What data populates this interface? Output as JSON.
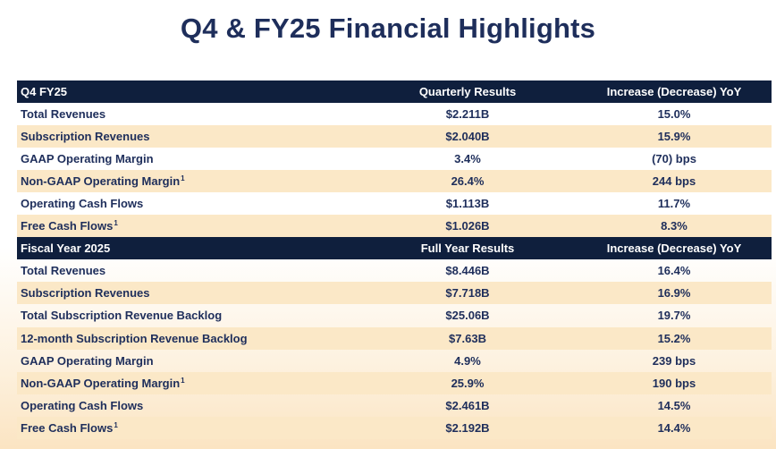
{
  "title": "Q4 & FY25 Financial Highlights",
  "q4": {
    "header": [
      "Q4 FY25",
      "Quarterly Results",
      "Increase (Decrease) YoY"
    ],
    "rows": [
      {
        "metric": "Total Revenues",
        "fn": "",
        "value": "$2.211B",
        "change": "15.0%"
      },
      {
        "metric": "Subscription Revenues",
        "fn": "",
        "value": "$2.040B",
        "change": "15.9%"
      },
      {
        "metric": "GAAP Operating Margin",
        "fn": "",
        "value": "3.4%",
        "change": "(70) bps"
      },
      {
        "metric": "Non-GAAP Operating Margin",
        "fn": "1",
        "value": "26.4%",
        "change": "244 bps"
      },
      {
        "metric": "Operating Cash Flows",
        "fn": "",
        "value": "$1.113B",
        "change": "11.7%"
      },
      {
        "metric": "Free Cash Flows",
        "fn": "1",
        "value": "$1.026B",
        "change": "8.3%"
      }
    ]
  },
  "fy": {
    "header": [
      "Fiscal Year 2025",
      "Full Year Results",
      "Increase (Decrease) YoY"
    ],
    "rows": [
      {
        "metric": "Total Revenues",
        "fn": "",
        "value": "$8.446B",
        "change": "16.4%"
      },
      {
        "metric": "Subscription Revenues",
        "fn": "",
        "value": "$7.718B",
        "change": "16.9%"
      },
      {
        "metric": "Total Subscription Revenue Backlog",
        "fn": "",
        "value": "$25.06B",
        "change": "19.7%"
      },
      {
        "metric": "12-month Subscription Revenue Backlog",
        "fn": "",
        "value": "$7.63B",
        "change": "15.2%"
      },
      {
        "metric": "GAAP Operating Margin",
        "fn": "",
        "value": "4.9%",
        "change": "239 bps"
      },
      {
        "metric": "Non-GAAP Operating Margin",
        "fn": "1",
        "value": "25.9%",
        "change": "190 bps"
      },
      {
        "metric": "Operating Cash Flows",
        "fn": "",
        "value": "$2.461B",
        "change": "14.5%"
      },
      {
        "metric": "Free Cash Flows",
        "fn": "1",
        "value": "$2.192B",
        "change": "14.4%"
      }
    ]
  },
  "colors": {
    "header_bg": "#0f1f3d",
    "text": "#1e2e5b",
    "band": "#fbe8c7"
  }
}
